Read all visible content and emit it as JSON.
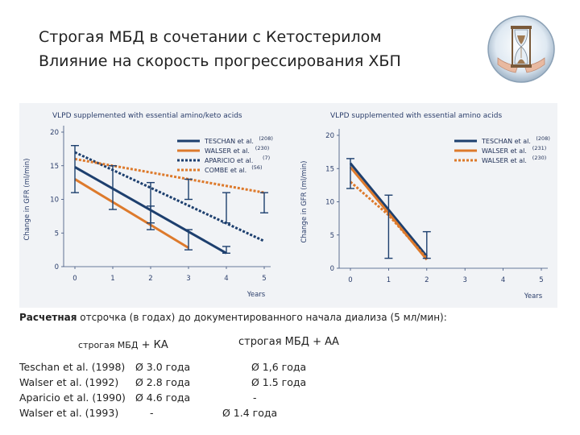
{
  "title_line1": "Строгая МБД в сочетании с Кетостерилом",
  "title_line2": "Влияние на скорость прогрессирования ХБП",
  "logo": "hourglass-in-hands-icon",
  "chart_data": [
    {
      "type": "line",
      "title": "VLPD supplemented with essential amino/keto acids",
      "xlabel": "Years",
      "ylabel": "Change in GFR (ml/min)",
      "xlim": [
        0,
        5
      ],
      "ylim": [
        0,
        20
      ],
      "xticks": [
        "0",
        "1",
        "2",
        "3",
        "4",
        "5"
      ],
      "yticks": [
        "0",
        "5",
        "10",
        "15",
        "20"
      ],
      "series": [
        {
          "name": "TESCHAN et al.",
          "ref": "(208)",
          "color": "#1d3f6e",
          "style": "solid",
          "x": [
            0,
            4
          ],
          "y": [
            14.8,
            2.0
          ]
        },
        {
          "name": "WALSER et al.",
          "ref": "(230)",
          "color": "#dd7a2c",
          "style": "solid",
          "x": [
            0,
            3
          ],
          "y": [
            13.0,
            2.8
          ]
        },
        {
          "name": "APARICIO et al.",
          "ref": "(7)",
          "color": "#1d3f6e",
          "style": "dotted",
          "x": [
            0,
            5
          ],
          "y": [
            17.0,
            3.8
          ]
        },
        {
          "name": "COMBE et al.",
          "ref": "(56)",
          "color": "#dd7a2c",
          "style": "dotted",
          "x": [
            0,
            5
          ],
          "y": [
            16.0,
            11.0
          ]
        }
      ],
      "error_bars": [
        {
          "x": 0,
          "low": 11.0,
          "high": 18.0
        },
        {
          "x": 1,
          "low": 8.5,
          "high": 15.0
        },
        {
          "x": 2,
          "low": 5.5,
          "high": 12.5
        },
        {
          "x": 2,
          "low": 6.5,
          "high": 9.0
        },
        {
          "x": 3,
          "low": 2.5,
          "high": 5.5
        },
        {
          "x": 3,
          "low": 10.0,
          "high": 13.0
        },
        {
          "x": 4,
          "low": 2.0,
          "high": 3.0
        },
        {
          "x": 4,
          "low": 6.5,
          "high": 11.0
        },
        {
          "x": 5,
          "low": 8.0,
          "high": 11.0
        }
      ]
    },
    {
      "type": "line",
      "title": "VLPD supplemented with essential amino acids",
      "xlabel": "Years",
      "ylabel": "Change in GFR (ml/min)",
      "xlim": [
        0,
        5
      ],
      "ylim": [
        0,
        20
      ],
      "xticks": [
        "0",
        "1",
        "2",
        "3",
        "4",
        "5"
      ],
      "yticks": [
        "0",
        "5",
        "10",
        "15",
        "20"
      ],
      "series": [
        {
          "name": "TESCHAN et al.",
          "ref": "(208)",
          "color": "#1d3f6e",
          "style": "solid",
          "x": [
            0,
            1,
            2
          ],
          "y": [
            15.8,
            8.8,
            1.8
          ]
        },
        {
          "name": "WALSER et al.",
          "ref": "(231)",
          "color": "#dd7a2c",
          "style": "solid",
          "x": [
            0,
            1,
            2
          ],
          "y": [
            15.2,
            8.3,
            1.3
          ]
        },
        {
          "name": "WALSER et al.",
          "ref": "(230)",
          "color": "#dd7a2c",
          "style": "dotted",
          "x": [
            0,
            1,
            2
          ],
          "y": [
            13.0,
            8.0,
            1.5
          ]
        }
      ],
      "error_bars": [
        {
          "x": 0,
          "low": 12.0,
          "high": 16.5
        },
        {
          "x": 1,
          "low": 1.5,
          "high": 11.0
        },
        {
          "x": 2,
          "low": 1.5,
          "high": 5.5
        }
      ]
    }
  ],
  "calc": {
    "bold": "Расчетная",
    "text": " отсрочка (в годах) до документированного начала диализа (5 мл/мин):"
  },
  "col1": {
    "small": "строгая МБД",
    "big": " + КА"
  },
  "col2": "строгая МБД + АА",
  "rows": [
    {
      "study": "Teschan et al. (1998)",
      "ka": "Ø 3.0 года",
      "aa": "Ø 1,6 года"
    },
    {
      "study": "Walser et al. (1992)",
      "ka": "Ø 2.8 года",
      "aa": "Ø 1.5 года"
    },
    {
      "study": "Aparicio et al. (1990)",
      "ka": "Ø 4.6 года",
      "aa": "-"
    },
    {
      "study": "Walser et al. (1993)",
      "ka": "-",
      "aa": "Ø 1.4 года"
    }
  ]
}
